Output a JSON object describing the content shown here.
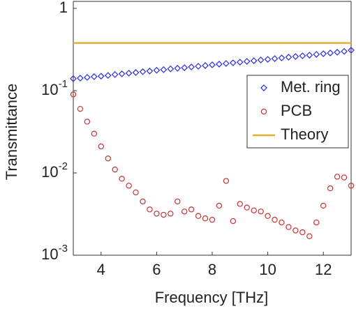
{
  "chart_data": {
    "type": "scatter",
    "xlabel": "Frequency [THz]",
    "ylabel": "Transmittance",
    "xlim": [
      3,
      13
    ],
    "ylim": [
      0.001,
      1
    ],
    "yscale": "log",
    "xticks": [
      4,
      6,
      8,
      10,
      12
    ],
    "yticks": [
      {
        "value": 0.001,
        "label": "10",
        "exponent": "-3"
      },
      {
        "value": 0.01,
        "label": "10",
        "exponent": "-2"
      },
      {
        "value": 0.1,
        "label": "10",
        "exponent": "-1"
      },
      1
    ],
    "legend": "upper right",
    "series": [
      {
        "name": "Met. ring",
        "color": "#2a2ae0",
        "marker": "diamond",
        "x": [
          3,
          3.25,
          3.5,
          3.75,
          4,
          4.25,
          4.5,
          4.75,
          5,
          5.25,
          5.5,
          5.75,
          6,
          6.25,
          6.5,
          6.75,
          7,
          7.25,
          7.5,
          7.75,
          8,
          8.25,
          8.5,
          8.75,
          9,
          9.25,
          9.5,
          9.75,
          10,
          10.25,
          10.5,
          10.75,
          11,
          11.25,
          11.5,
          11.75,
          12,
          12.25,
          12.5,
          12.75,
          13
        ],
        "values": [
          0.14,
          0.142,
          0.145,
          0.148,
          0.15,
          0.153,
          0.157,
          0.16,
          0.163,
          0.166,
          0.17,
          0.173,
          0.177,
          0.18,
          0.184,
          0.187,
          0.19,
          0.194,
          0.198,
          0.202,
          0.206,
          0.21,
          0.214,
          0.218,
          0.222,
          0.227,
          0.231,
          0.236,
          0.24,
          0.245,
          0.25,
          0.255,
          0.26,
          0.265,
          0.27,
          0.276,
          0.281,
          0.287,
          0.293,
          0.3,
          0.31
        ]
      },
      {
        "name": "PCB",
        "color": "#c83232",
        "marker": "circle",
        "x": [
          3,
          3.25,
          3.5,
          3.75,
          4,
          4.25,
          4.5,
          4.75,
          5,
          5.25,
          5.5,
          5.75,
          6,
          6.25,
          6.5,
          6.75,
          7,
          7.25,
          7.5,
          7.75,
          8,
          8.25,
          8.5,
          8.75,
          9,
          9.25,
          9.5,
          9.75,
          10,
          10.25,
          10.5,
          10.75,
          11,
          11.25,
          11.5,
          11.75,
          12,
          12.25,
          12.5,
          12.75,
          13
        ],
        "values": [
          0.09,
          0.06,
          0.042,
          0.03,
          0.021,
          0.015,
          0.011,
          0.0085,
          0.007,
          0.0058,
          0.0045,
          0.0036,
          0.0032,
          0.0031,
          0.0032,
          0.0045,
          0.0034,
          0.0036,
          0.003,
          0.0028,
          0.0027,
          0.004,
          0.008,
          0.0026,
          0.0042,
          0.0038,
          0.0035,
          0.0034,
          0.003,
          0.0027,
          0.0025,
          0.0022,
          0.002,
          0.0019,
          0.0017,
          0.0025,
          0.004,
          0.0065,
          0.009,
          0.0088,
          0.007
        ]
      },
      {
        "name": "Theory",
        "color": "#e0b030",
        "marker": "line",
        "x": [
          3,
          13
        ],
        "values": [
          0.38,
          0.38
        ]
      }
    ]
  }
}
